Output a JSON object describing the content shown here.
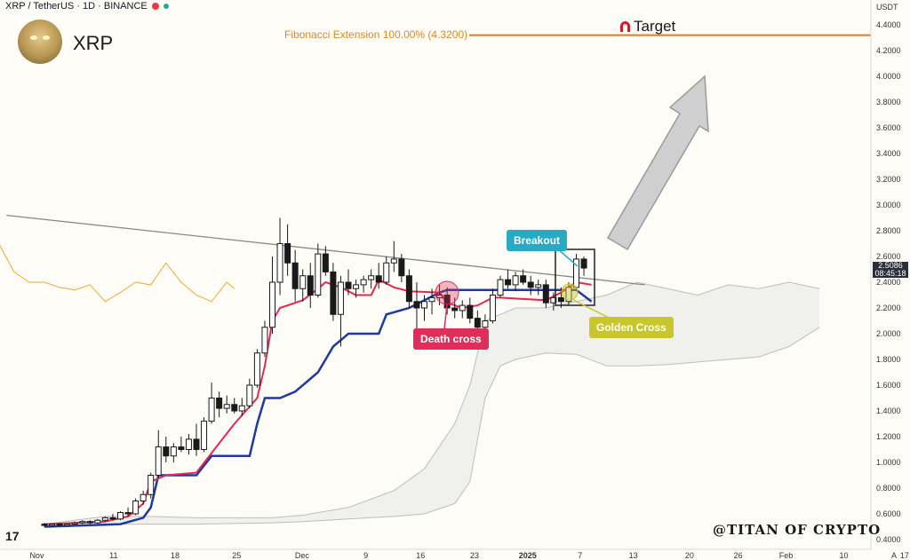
{
  "header": {
    "pair": "XRP / TetherUS · 1D · BINANCE",
    "symbol": "XRP"
  },
  "axis": {
    "currency": "USDT",
    "price_ticks": [
      "4.4000",
      "4.2000",
      "4.0000",
      "3.8000",
      "3.6000",
      "3.4000",
      "3.2000",
      "3.0000",
      "2.8000",
      "2.6000",
      "2.4000",
      "2.2000",
      "2.0000",
      "1.8000",
      "1.6000",
      "1.4000",
      "1.2000",
      "1.0000",
      "0.8000",
      "0.6000",
      "0.4000"
    ],
    "date_ticks": [
      "Nov",
      "11",
      "18",
      "25",
      "Dec",
      "9",
      "16",
      "23",
      "2025",
      "7",
      "13",
      "20",
      "26",
      "Feb",
      "10",
      "17"
    ],
    "price_label": "2.5086",
    "countdown_label": "08:45:18",
    "auto_label": "A"
  },
  "annotations": {
    "fib_label": "Fibonacci Extension 100.00% (4.3200)",
    "target_label": "Target",
    "breakout_label": "Breakout",
    "death_cross_label": "Death cross",
    "golden_cross_label": "Golden Cross",
    "watermark": "@TITAN OF CRYPTO",
    "tv_logo": "17"
  },
  "colors": {
    "fib_line": "#e07b1c",
    "red_line": "#e3294f",
    "blue_line": "#1c3aa0",
    "lagging_span": "#f0a830",
    "cloud": "#e6e6e6",
    "breakout": "#28a9c4",
    "death_cross": "#df2e5a",
    "golden_cross": "#c8c62a",
    "candle": "#1a1a1a"
  },
  "chart_data": {
    "type": "candlestick",
    "title": "XRP / TetherUS · 1D · BINANCE",
    "ylim": [
      0.35,
      4.5
    ],
    "fib_level": 4.32,
    "current_price": 2.5086,
    "candles": [
      {
        "t": 0,
        "o": 0.52,
        "h": 0.53,
        "l": 0.5,
        "c": 0.51
      },
      {
        "t": 1,
        "o": 0.51,
        "h": 0.52,
        "l": 0.5,
        "c": 0.52
      },
      {
        "t": 2,
        "o": 0.52,
        "h": 0.53,
        "l": 0.51,
        "c": 0.51
      },
      {
        "t": 3,
        "o": 0.51,
        "h": 0.52,
        "l": 0.5,
        "c": 0.52
      },
      {
        "t": 4,
        "o": 0.52,
        "h": 0.54,
        "l": 0.51,
        "c": 0.53
      },
      {
        "t": 5,
        "o": 0.53,
        "h": 0.55,
        "l": 0.52,
        "c": 0.54
      },
      {
        "t": 6,
        "o": 0.54,
        "h": 0.55,
        "l": 0.52,
        "c": 0.53
      },
      {
        "t": 7,
        "o": 0.53,
        "h": 0.56,
        "l": 0.52,
        "c": 0.55
      },
      {
        "t": 8,
        "o": 0.55,
        "h": 0.58,
        "l": 0.54,
        "c": 0.57
      },
      {
        "t": 9,
        "o": 0.57,
        "h": 0.6,
        "l": 0.55,
        "c": 0.56
      },
      {
        "t": 10,
        "o": 0.56,
        "h": 0.62,
        "l": 0.55,
        "c": 0.61
      },
      {
        "t": 11,
        "o": 0.61,
        "h": 0.65,
        "l": 0.58,
        "c": 0.6
      },
      {
        "t": 12,
        "o": 0.6,
        "h": 0.72,
        "l": 0.59,
        "c": 0.7
      },
      {
        "t": 13,
        "o": 0.7,
        "h": 0.78,
        "l": 0.67,
        "c": 0.75
      },
      {
        "t": 14,
        "o": 0.75,
        "h": 0.92,
        "l": 0.72,
        "c": 0.9
      },
      {
        "t": 15,
        "o": 0.9,
        "h": 1.25,
        "l": 0.88,
        "c": 1.12
      },
      {
        "t": 16,
        "o": 1.12,
        "h": 1.2,
        "l": 1.0,
        "c": 1.05
      },
      {
        "t": 17,
        "o": 1.05,
        "h": 1.15,
        "l": 1.0,
        "c": 1.12
      },
      {
        "t": 18,
        "o": 1.12,
        "h": 1.2,
        "l": 1.08,
        "c": 1.1
      },
      {
        "t": 19,
        "o": 1.1,
        "h": 1.22,
        "l": 1.06,
        "c": 1.18
      },
      {
        "t": 20,
        "o": 1.18,
        "h": 1.3,
        "l": 1.05,
        "c": 1.1
      },
      {
        "t": 21,
        "o": 1.1,
        "h": 1.35,
        "l": 1.08,
        "c": 1.32
      },
      {
        "t": 22,
        "o": 1.32,
        "h": 1.62,
        "l": 1.3,
        "c": 1.5
      },
      {
        "t": 23,
        "o": 1.5,
        "h": 1.55,
        "l": 1.35,
        "c": 1.42
      },
      {
        "t": 24,
        "o": 1.42,
        "h": 1.52,
        "l": 1.38,
        "c": 1.45
      },
      {
        "t": 25,
        "o": 1.45,
        "h": 1.5,
        "l": 1.38,
        "c": 1.4
      },
      {
        "t": 26,
        "o": 1.4,
        "h": 1.5,
        "l": 1.36,
        "c": 1.44
      },
      {
        "t": 27,
        "o": 1.44,
        "h": 1.65,
        "l": 1.42,
        "c": 1.6
      },
      {
        "t": 28,
        "o": 1.6,
        "h": 1.88,
        "l": 1.58,
        "c": 1.85
      },
      {
        "t": 29,
        "o": 1.85,
        "h": 2.1,
        "l": 1.82,
        "c": 2.05
      },
      {
        "t": 30,
        "o": 2.05,
        "h": 2.6,
        "l": 2.0,
        "c": 2.4
      },
      {
        "t": 31,
        "o": 2.4,
        "h": 2.9,
        "l": 2.3,
        "c": 2.7
      },
      {
        "t": 32,
        "o": 2.7,
        "h": 2.85,
        "l": 2.45,
        "c": 2.55
      },
      {
        "t": 33,
        "o": 2.55,
        "h": 2.65,
        "l": 2.25,
        "c": 2.35
      },
      {
        "t": 34,
        "o": 2.35,
        "h": 2.5,
        "l": 2.25,
        "c": 2.45
      },
      {
        "t": 35,
        "o": 2.45,
        "h": 2.55,
        "l": 2.2,
        "c": 2.3
      },
      {
        "t": 36,
        "o": 2.3,
        "h": 2.7,
        "l": 2.28,
        "c": 2.62
      },
      {
        "t": 37,
        "o": 2.62,
        "h": 2.68,
        "l": 2.45,
        "c": 2.48
      },
      {
        "t": 38,
        "o": 2.48,
        "h": 2.55,
        "l": 2.1,
        "c": 2.15
      },
      {
        "t": 39,
        "o": 2.15,
        "h": 2.45,
        "l": 1.9,
        "c": 2.4
      },
      {
        "t": 40,
        "o": 2.4,
        "h": 2.5,
        "l": 2.3,
        "c": 2.35
      },
      {
        "t": 41,
        "o": 2.35,
        "h": 2.42,
        "l": 2.28,
        "c": 2.38
      },
      {
        "t": 42,
        "o": 2.38,
        "h": 2.45,
        "l": 2.32,
        "c": 2.42
      },
      {
        "t": 43,
        "o": 2.42,
        "h": 2.5,
        "l": 2.35,
        "c": 2.45
      },
      {
        "t": 44,
        "o": 2.45,
        "h": 2.55,
        "l": 2.35,
        "c": 2.4
      },
      {
        "t": 45,
        "o": 2.4,
        "h": 2.6,
        "l": 2.38,
        "c": 2.55
      },
      {
        "t": 46,
        "o": 2.55,
        "h": 2.72,
        "l": 2.48,
        "c": 2.58
      },
      {
        "t": 47,
        "o": 2.58,
        "h": 2.62,
        "l": 2.4,
        "c": 2.45
      },
      {
        "t": 48,
        "o": 2.45,
        "h": 2.5,
        "l": 2.2,
        "c": 2.25
      },
      {
        "t": 49,
        "o": 2.25,
        "h": 2.4,
        "l": 1.96,
        "c": 2.2
      },
      {
        "t": 50,
        "o": 2.2,
        "h": 2.3,
        "l": 2.1,
        "c": 2.25
      },
      {
        "t": 51,
        "o": 2.25,
        "h": 2.35,
        "l": 2.15,
        "c": 2.28
      },
      {
        "t": 52,
        "o": 2.28,
        "h": 2.38,
        "l": 2.22,
        "c": 2.3
      },
      {
        "t": 53,
        "o": 2.3,
        "h": 2.36,
        "l": 2.15,
        "c": 2.2
      },
      {
        "t": 54,
        "o": 2.2,
        "h": 2.28,
        "l": 2.12,
        "c": 2.18
      },
      {
        "t": 55,
        "o": 2.18,
        "h": 2.26,
        "l": 2.12,
        "c": 2.22
      },
      {
        "t": 56,
        "o": 2.22,
        "h": 2.28,
        "l": 2.08,
        "c": 2.12
      },
      {
        "t": 57,
        "o": 2.12,
        "h": 2.18,
        "l": 2.0,
        "c": 2.05
      },
      {
        "t": 58,
        "o": 2.05,
        "h": 2.15,
        "l": 2.02,
        "c": 2.1
      },
      {
        "t": 59,
        "o": 2.1,
        "h": 2.35,
        "l": 2.08,
        "c": 2.3
      },
      {
        "t": 60,
        "o": 2.3,
        "h": 2.45,
        "l": 2.28,
        "c": 2.42
      },
      {
        "t": 61,
        "o": 2.42,
        "h": 2.5,
        "l": 2.35,
        "c": 2.38
      },
      {
        "t": 62,
        "o": 2.38,
        "h": 2.48,
        "l": 2.33,
        "c": 2.45
      },
      {
        "t": 63,
        "o": 2.45,
        "h": 2.5,
        "l": 2.38,
        "c": 2.4
      },
      {
        "t": 64,
        "o": 2.4,
        "h": 2.45,
        "l": 2.3,
        "c": 2.36
      },
      {
        "t": 65,
        "o": 2.36,
        "h": 2.42,
        "l": 2.3,
        "c": 2.38
      },
      {
        "t": 66,
        "o": 2.38,
        "h": 2.42,
        "l": 2.2,
        "c": 2.24
      },
      {
        "t": 67,
        "o": 2.24,
        "h": 2.32,
        "l": 2.18,
        "c": 2.28
      },
      {
        "t": 68,
        "o": 2.28,
        "h": 2.36,
        "l": 2.2,
        "c": 2.25
      },
      {
        "t": 69,
        "o": 2.25,
        "h": 2.4,
        "l": 2.22,
        "c": 2.36
      },
      {
        "t": 70,
        "o": 2.36,
        "h": 2.62,
        "l": 2.34,
        "c": 2.58
      },
      {
        "t": 71,
        "o": 2.58,
        "h": 2.6,
        "l": 2.45,
        "c": 2.51
      }
    ],
    "red_line": [
      [
        0,
        0.52
      ],
      [
        8,
        0.54
      ],
      [
        11,
        0.58
      ],
      [
        13,
        0.68
      ],
      [
        14,
        0.85
      ],
      [
        16,
        0.9
      ],
      [
        20,
        0.92
      ],
      [
        23,
        1.15
      ],
      [
        25,
        1.3
      ],
      [
        28,
        1.5
      ],
      [
        29,
        1.75
      ],
      [
        30,
        2.1
      ],
      [
        31,
        2.2
      ],
      [
        33,
        2.24
      ],
      [
        34,
        2.26
      ],
      [
        36,
        2.35
      ],
      [
        37,
        2.4
      ],
      [
        39,
        2.36
      ],
      [
        41,
        2.3
      ],
      [
        43,
        2.3
      ],
      [
        44,
        2.42
      ],
      [
        46,
        2.36
      ],
      [
        48,
        2.33
      ],
      [
        52,
        2.32
      ],
      [
        53,
        2.24
      ],
      [
        55,
        2.2
      ],
      [
        57,
        2.22
      ],
      [
        59,
        2.28
      ],
      [
        60,
        2.28
      ],
      [
        63,
        2.27
      ],
      [
        66,
        2.26
      ],
      [
        68,
        2.32
      ],
      [
        70,
        2.4
      ],
      [
        72,
        2.38
      ]
    ],
    "blue_line": [
      [
        0,
        0.5
      ],
      [
        10,
        0.52
      ],
      [
        13,
        0.57
      ],
      [
        14,
        0.65
      ],
      [
        15,
        0.9
      ],
      [
        20,
        0.9
      ],
      [
        22,
        1.05
      ],
      [
        25,
        1.05
      ],
      [
        27,
        1.05
      ],
      [
        28,
        1.3
      ],
      [
        29,
        1.5
      ],
      [
        31,
        1.5
      ],
      [
        33,
        1.55
      ],
      [
        36,
        1.7
      ],
      [
        37,
        1.8
      ],
      [
        38,
        1.9
      ],
      [
        39,
        1.95
      ],
      [
        40,
        2.0
      ],
      [
        44,
        2.0
      ],
      [
        45,
        2.15
      ],
      [
        48,
        2.2
      ],
      [
        52,
        2.32
      ],
      [
        53,
        2.34
      ],
      [
        58,
        2.34
      ],
      [
        62,
        2.34
      ],
      [
        64,
        2.34
      ],
      [
        67,
        2.34
      ],
      [
        70,
        2.34
      ],
      [
        72,
        2.25
      ]
    ],
    "lagging_span": [
      [
        -30,
        1.43
      ],
      [
        -28,
        1.4
      ],
      [
        -26,
        1.75
      ],
      [
        -24,
        2.05
      ],
      [
        -22,
        2.73
      ],
      [
        -20,
        2.45
      ],
      [
        -18,
        2.35
      ],
      [
        -16,
        2.62
      ],
      [
        -14,
        2.38
      ],
      [
        -12,
        2.48
      ],
      [
        -10,
        2.45
      ],
      [
        -8,
        2.48
      ],
      [
        -6,
        2.7
      ],
      [
        -4,
        2.48
      ],
      [
        -2,
        2.4
      ],
      [
        0,
        2.4
      ],
      [
        2,
        2.36
      ],
      [
        4,
        2.34
      ],
      [
        6,
        2.38
      ],
      [
        8,
        2.25
      ],
      [
        10,
        2.32
      ],
      [
        12,
        2.4
      ],
      [
        14,
        2.38
      ],
      [
        16,
        2.55
      ],
      [
        18,
        2.4
      ],
      [
        20,
        2.3
      ],
      [
        22,
        2.25
      ],
      [
        24,
        2.4
      ],
      [
        25,
        2.35
      ]
    ],
    "cloud_top": [
      [
        0,
        0.52
      ],
      [
        8,
        0.58
      ],
      [
        14,
        0.58
      ],
      [
        20,
        0.57
      ],
      [
        30,
        0.57
      ],
      [
        34,
        0.59
      ],
      [
        40,
        0.65
      ],
      [
        46,
        0.78
      ],
      [
        50,
        0.95
      ],
      [
        54,
        1.3
      ],
      [
        56,
        1.6
      ],
      [
        58,
        2.1
      ],
      [
        60,
        2.15
      ],
      [
        62,
        2.2
      ],
      [
        66,
        2.2
      ],
      [
        70,
        2.25
      ],
      [
        74,
        2.3
      ],
      [
        78,
        2.4
      ],
      [
        82,
        2.35
      ],
      [
        86,
        2.3
      ],
      [
        90,
        2.38
      ],
      [
        94,
        2.35
      ],
      [
        98,
        2.4
      ],
      [
        102,
        2.35
      ]
    ],
    "cloud_bottom": [
      [
        0,
        0.5
      ],
      [
        8,
        0.52
      ],
      [
        14,
        0.52
      ],
      [
        20,
        0.52
      ],
      [
        30,
        0.53
      ],
      [
        34,
        0.54
      ],
      [
        40,
        0.56
      ],
      [
        46,
        0.58
      ],
      [
        50,
        0.6
      ],
      [
        54,
        0.68
      ],
      [
        56,
        0.85
      ],
      [
        58,
        1.5
      ],
      [
        60,
        1.75
      ],
      [
        62,
        1.8
      ],
      [
        66,
        1.85
      ],
      [
        70,
        1.84
      ],
      [
        74,
        1.75
      ],
      [
        78,
        1.75
      ],
      [
        82,
        1.76
      ],
      [
        86,
        1.78
      ],
      [
        90,
        1.8
      ],
      [
        94,
        1.82
      ],
      [
        98,
        1.9
      ],
      [
        102,
        2.05
      ]
    ],
    "trendline": [
      [
        -5,
        2.92
      ],
      [
        79,
        2.38
      ]
    ]
  }
}
